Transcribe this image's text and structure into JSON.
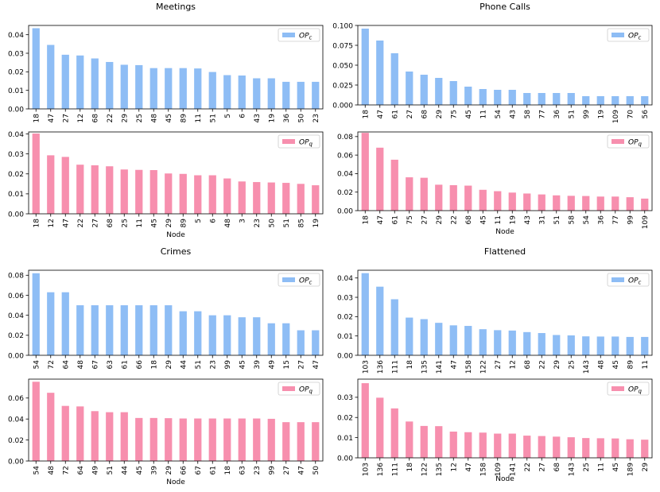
{
  "colors": {
    "c_series": "#8ebdf5",
    "q_series": "#f78fae"
  },
  "chart_data": [
    {
      "type": "bar",
      "group": "Meetings",
      "title": "Meetings",
      "xlabel": "",
      "legend": "OP",
      "legend_sub": "c",
      "legend_position": "top-right",
      "ylim": [
        0,
        0.045
      ],
      "yticks": [
        "0.00",
        "0.01",
        "0.02",
        "0.03",
        "0.04"
      ],
      "ytick_values": [
        0,
        0.01,
        0.02,
        0.03,
        0.04
      ],
      "categories": [
        "18",
        "47",
        "27",
        "12",
        "68",
        "22",
        "29",
        "25",
        "48",
        "45",
        "89",
        "11",
        "51",
        "5",
        "6",
        "43",
        "19",
        "36",
        "50",
        "23"
      ],
      "values": [
        0.0435,
        0.0345,
        0.0292,
        0.0288,
        0.0272,
        0.0253,
        0.0238,
        0.0236,
        0.022,
        0.022,
        0.022,
        0.0218,
        0.0199,
        0.0182,
        0.018,
        0.0165,
        0.0165,
        0.0146,
        0.0146,
        0.0146
      ]
    },
    {
      "type": "bar",
      "group": "Meetings",
      "title": "",
      "xlabel": "Node",
      "legend": "OP",
      "legend_sub": "q",
      "legend_position": "top-right",
      "ylim": [
        0,
        0.041
      ],
      "yticks": [
        "0.00",
        "0.01",
        "0.02",
        "0.03",
        "0.04"
      ],
      "ytick_values": [
        0,
        0.01,
        0.02,
        0.03,
        0.04
      ],
      "categories": [
        "18",
        "12",
        "47",
        "22",
        "27",
        "68",
        "25",
        "11",
        "45",
        "29",
        "89",
        "5",
        "6",
        "48",
        "3",
        "23",
        "50",
        "51",
        "85",
        "19"
      ],
      "values": [
        0.0402,
        0.0293,
        0.0285,
        0.0246,
        0.0243,
        0.0238,
        0.0222,
        0.022,
        0.0219,
        0.0202,
        0.02,
        0.0193,
        0.0193,
        0.0177,
        0.0162,
        0.0159,
        0.0157,
        0.0155,
        0.015,
        0.0143
      ]
    },
    {
      "type": "bar",
      "group": "Phone Calls",
      "title": "Phone Calls",
      "xlabel": "",
      "legend": "OP",
      "legend_sub": "c",
      "legend_position": "top-right",
      "ylim": [
        0,
        0.1
      ],
      "yticks": [
        "0.000",
        "0.025",
        "0.050",
        "0.075",
        "0.100"
      ],
      "ytick_values": [
        0,
        0.025,
        0.05,
        0.075,
        0.1
      ],
      "categories": [
        "18",
        "47",
        "61",
        "27",
        "68",
        "29",
        "75",
        "45",
        "11",
        "54",
        "43",
        "58",
        "77",
        "36",
        "51",
        "99",
        "19",
        "109",
        "70",
        "56"
      ],
      "values": [
        0.096,
        0.081,
        0.065,
        0.042,
        0.038,
        0.034,
        0.03,
        0.023,
        0.02,
        0.019,
        0.019,
        0.015,
        0.015,
        0.015,
        0.015,
        0.011,
        0.011,
        0.011,
        0.011,
        0.011
      ]
    },
    {
      "type": "bar",
      "group": "Phone Calls",
      "title": "",
      "xlabel": "Node",
      "legend": "OP",
      "legend_sub": "q",
      "legend_position": "top-right",
      "ylim": [
        0,
        0.085
      ],
      "yticks": [
        "0.00",
        "0.02",
        "0.04",
        "0.06",
        "0.08"
      ],
      "ytick_values": [
        0,
        0.02,
        0.04,
        0.06,
        0.08
      ],
      "categories": [
        "18",
        "47",
        "61",
        "75",
        "27",
        "29",
        "22",
        "68",
        "45",
        "11",
        "19",
        "43",
        "31",
        "51",
        "58",
        "54",
        "36",
        "77",
        "99",
        "109"
      ],
      "values": [
        0.084,
        0.068,
        0.055,
        0.036,
        0.0355,
        0.028,
        0.0275,
        0.027,
        0.0225,
        0.021,
        0.0195,
        0.0185,
        0.0175,
        0.0165,
        0.016,
        0.0158,
        0.0152,
        0.0152,
        0.0145,
        0.013
      ]
    },
    {
      "type": "bar",
      "group": "Crimes",
      "title": "Crimes",
      "xlabel": "",
      "legend": "OP",
      "legend_sub": "c",
      "legend_position": "top-right",
      "ylim": [
        0,
        0.085
      ],
      "yticks": [
        "0.00",
        "0.02",
        "0.04",
        "0.06",
        "0.08"
      ],
      "ytick_values": [
        0,
        0.02,
        0.04,
        0.06,
        0.08
      ],
      "categories": [
        "54",
        "72",
        "64",
        "48",
        "67",
        "63",
        "61",
        "66",
        "18",
        "29",
        "44",
        "51",
        "23",
        "99",
        "45",
        "39",
        "49",
        "15",
        "27",
        "47"
      ],
      "values": [
        0.082,
        0.063,
        0.063,
        0.05,
        0.05,
        0.05,
        0.05,
        0.05,
        0.05,
        0.05,
        0.044,
        0.044,
        0.04,
        0.04,
        0.038,
        0.038,
        0.032,
        0.032,
        0.025,
        0.025
      ]
    },
    {
      "type": "bar",
      "group": "Crimes",
      "title": "",
      "xlabel": "Node",
      "legend": "OP",
      "legend_sub": "q",
      "legend_position": "top-right",
      "ylim": [
        0,
        0.078
      ],
      "yticks": [
        "0.00",
        "0.02",
        "0.04",
        "0.06"
      ],
      "ytick_values": [
        0,
        0.02,
        0.04,
        0.06
      ],
      "categories": [
        "54",
        "48",
        "72",
        "64",
        "49",
        "51",
        "44",
        "45",
        "39",
        "29",
        "66",
        "67",
        "61",
        "18",
        "63",
        "23",
        "99",
        "27",
        "47",
        "50"
      ],
      "values": [
        0.0755,
        0.065,
        0.0525,
        0.052,
        0.0475,
        0.0465,
        0.0465,
        0.041,
        0.041,
        0.0408,
        0.0405,
        0.0405,
        0.0405,
        0.0405,
        0.0405,
        0.0405,
        0.0402,
        0.037,
        0.037,
        0.037
      ]
    },
    {
      "type": "bar",
      "group": "Flattened",
      "title": "Flattened",
      "xlabel": "",
      "legend": "OP",
      "legend_sub": "c",
      "legend_position": "top-right",
      "ylim": [
        0,
        0.044
      ],
      "yticks": [
        "0.00",
        "0.01",
        "0.02",
        "0.03",
        "0.04"
      ],
      "ytick_values": [
        0,
        0.01,
        0.02,
        0.03,
        0.04
      ],
      "categories": [
        "103",
        "136",
        "111",
        "18",
        "135",
        "141",
        "47",
        "158",
        "122",
        "27",
        "12",
        "68",
        "22",
        "29",
        "25",
        "143",
        "48",
        "45",
        "89",
        "11"
      ],
      "values": [
        0.0425,
        0.0355,
        0.029,
        0.0195,
        0.0187,
        0.0168,
        0.0155,
        0.0152,
        0.0135,
        0.013,
        0.0128,
        0.012,
        0.0115,
        0.0105,
        0.0103,
        0.0098,
        0.0097,
        0.0097,
        0.0095,
        0.0095
      ]
    },
    {
      "type": "bar",
      "group": "Flattened",
      "title": "",
      "xlabel": "Node",
      "legend": "OP",
      "legend_sub": "q",
      "legend_position": "top-right",
      "ylim": [
        0,
        0.039
      ],
      "yticks": [
        "0.00",
        "0.01",
        "0.02",
        "0.03"
      ],
      "ytick_values": [
        0,
        0.01,
        0.02,
        0.03
      ],
      "categories": [
        "103",
        "136",
        "111",
        "18",
        "122",
        "135",
        "12",
        "47",
        "158",
        "109",
        "141",
        "22",
        "27",
        "68",
        "143",
        "25",
        "11",
        "45",
        "189",
        "29"
      ],
      "values": [
        0.037,
        0.0298,
        0.0245,
        0.018,
        0.0158,
        0.0157,
        0.013,
        0.0127,
        0.0125,
        0.012,
        0.012,
        0.011,
        0.0108,
        0.0105,
        0.0102,
        0.0098,
        0.0097,
        0.0096,
        0.0092,
        0.009
      ]
    }
  ]
}
